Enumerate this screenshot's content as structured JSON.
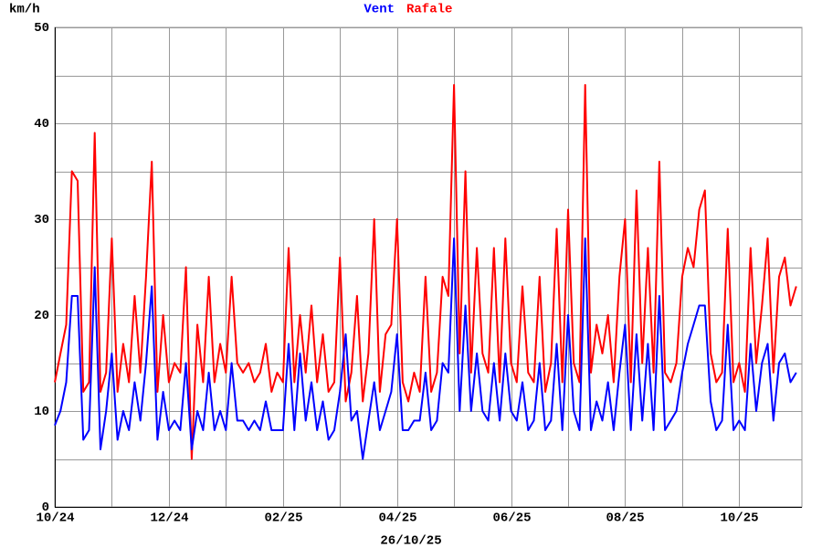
{
  "chart_data": {
    "type": "line",
    "y_label": "km/h",
    "x_label": "26/10/25",
    "x": [
      0,
      0.1,
      0.2,
      0.3,
      0.4,
      0.5,
      0.6,
      0.7,
      0.8,
      0.9,
      1,
      1.1,
      1.2,
      1.3,
      1.4,
      1.5,
      1.6,
      1.7,
      1.8,
      1.9,
      2,
      2.1,
      2.2,
      2.3,
      2.4,
      2.5,
      2.6,
      2.7,
      2.8,
      2.9,
      3,
      3.1,
      3.2,
      3.3,
      3.4,
      3.5,
      3.6,
      3.7,
      3.8,
      3.9,
      4,
      4.1,
      4.2,
      4.3,
      4.4,
      4.5,
      4.6,
      4.7,
      4.8,
      4.9,
      5,
      5.1,
      5.2,
      5.3,
      5.4,
      5.5,
      5.6,
      5.7,
      5.8,
      5.9,
      6,
      6.1,
      6.2,
      6.3,
      6.4,
      6.5,
      6.6,
      6.7,
      6.8,
      6.9,
      7,
      7.1,
      7.2,
      7.3,
      7.4,
      7.5,
      7.6,
      7.7,
      7.8,
      7.9,
      8,
      8.1,
      8.2,
      8.3,
      8.4,
      8.5,
      8.6,
      8.7,
      8.8,
      8.9,
      9,
      9.1,
      9.2,
      9.3,
      9.4,
      9.5,
      9.6,
      9.7,
      9.8,
      9.9,
      10,
      10.1,
      10.2,
      10.3,
      10.4,
      10.5,
      10.6,
      10.7,
      10.8,
      10.9,
      11,
      11.1,
      11.2,
      11.3,
      11.4,
      11.5,
      11.6,
      11.7,
      11.8,
      11.9,
      12,
      12.1,
      12.2,
      12.3,
      12.4,
      12.5,
      12.6,
      12.7,
      12.8,
      12.9,
      13
    ],
    "series": [
      {
        "name": "Vent",
        "color": "#0000ff",
        "values": [
          8.5,
          10,
          13,
          22,
          22,
          7,
          8,
          25,
          6,
          10,
          16,
          7,
          10,
          8,
          13,
          9,
          15,
          23,
          7,
          12,
          8,
          9,
          8,
          15,
          6,
          10,
          8,
          14,
          8,
          10,
          8,
          15,
          9,
          9,
          8,
          9,
          8,
          11,
          8,
          8,
          8,
          17,
          8,
          16,
          9,
          13,
          8,
          11,
          7,
          8,
          12,
          18,
          9,
          10,
          5,
          9,
          13,
          8,
          10,
          12,
          18,
          8,
          8,
          9,
          9,
          14,
          8,
          9,
          15,
          14,
          28,
          10,
          21,
          10,
          16,
          10,
          9,
          15,
          9,
          16,
          10,
          9,
          13,
          8,
          9,
          15,
          8,
          9,
          17,
          8,
          20,
          10,
          8,
          28,
          8,
          11,
          9,
          13,
          8,
          14,
          19,
          8,
          18,
          9,
          17,
          8,
          22,
          8,
          9,
          10,
          14,
          17,
          19,
          21,
          21,
          11,
          8,
          9,
          19,
          8,
          9,
          8,
          17,
          10,
          15,
          17,
          9,
          15,
          16,
          13,
          14
        ]
      },
      {
        "name": "Rafale",
        "color": "#ff0000",
        "values": [
          13,
          16,
          19,
          35,
          34,
          12,
          13,
          39,
          12,
          14,
          28,
          12,
          17,
          13,
          22,
          14,
          24,
          36,
          12,
          20,
          13,
          15,
          14,
          25,
          5,
          19,
          13,
          24,
          13,
          17,
          14,
          24,
          15,
          14,
          15,
          13,
          14,
          17,
          12,
          14,
          13,
          27,
          13,
          20,
          14,
          21,
          13,
          18,
          12,
          13,
          26,
          11,
          14,
          22,
          11,
          16,
          30,
          12,
          18,
          19,
          30,
          13,
          11,
          14,
          12,
          24,
          12,
          14,
          24,
          22,
          44,
          16,
          35,
          14,
          27,
          16,
          14,
          27,
          13,
          28,
          15,
          13,
          23,
          14,
          13,
          24,
          12,
          15,
          29,
          13,
          31,
          15,
          13,
          44,
          14,
          19,
          16,
          20,
          13,
          24,
          30,
          13,
          33,
          15,
          27,
          14,
          36,
          14,
          13,
          15,
          24,
          27,
          25,
          31,
          33,
          16,
          13,
          14,
          29,
          13,
          15,
          12,
          27,
          15,
          21,
          28,
          14,
          24,
          26,
          21,
          23
        ]
      }
    ],
    "xlim": [
      0,
      13.1
    ],
    "xticks": [
      {
        "value": 0,
        "label": "10/24"
      },
      {
        "value": 2,
        "label": "12/24"
      },
      {
        "value": 4,
        "label": "02/25"
      },
      {
        "value": 6,
        "label": "04/25"
      },
      {
        "value": 8,
        "label": "06/25"
      },
      {
        "value": 10,
        "label": "08/25"
      },
      {
        "value": 12,
        "label": "10/25"
      }
    ],
    "x_minor_grid": [
      1,
      3,
      5,
      7,
      9,
      11
    ],
    "ylim": [
      0,
      50
    ],
    "yticks": [
      0,
      10,
      20,
      30,
      40,
      50
    ],
    "y_minor_grid": [
      5,
      15,
      25,
      35,
      45
    ],
    "grid": true
  }
}
